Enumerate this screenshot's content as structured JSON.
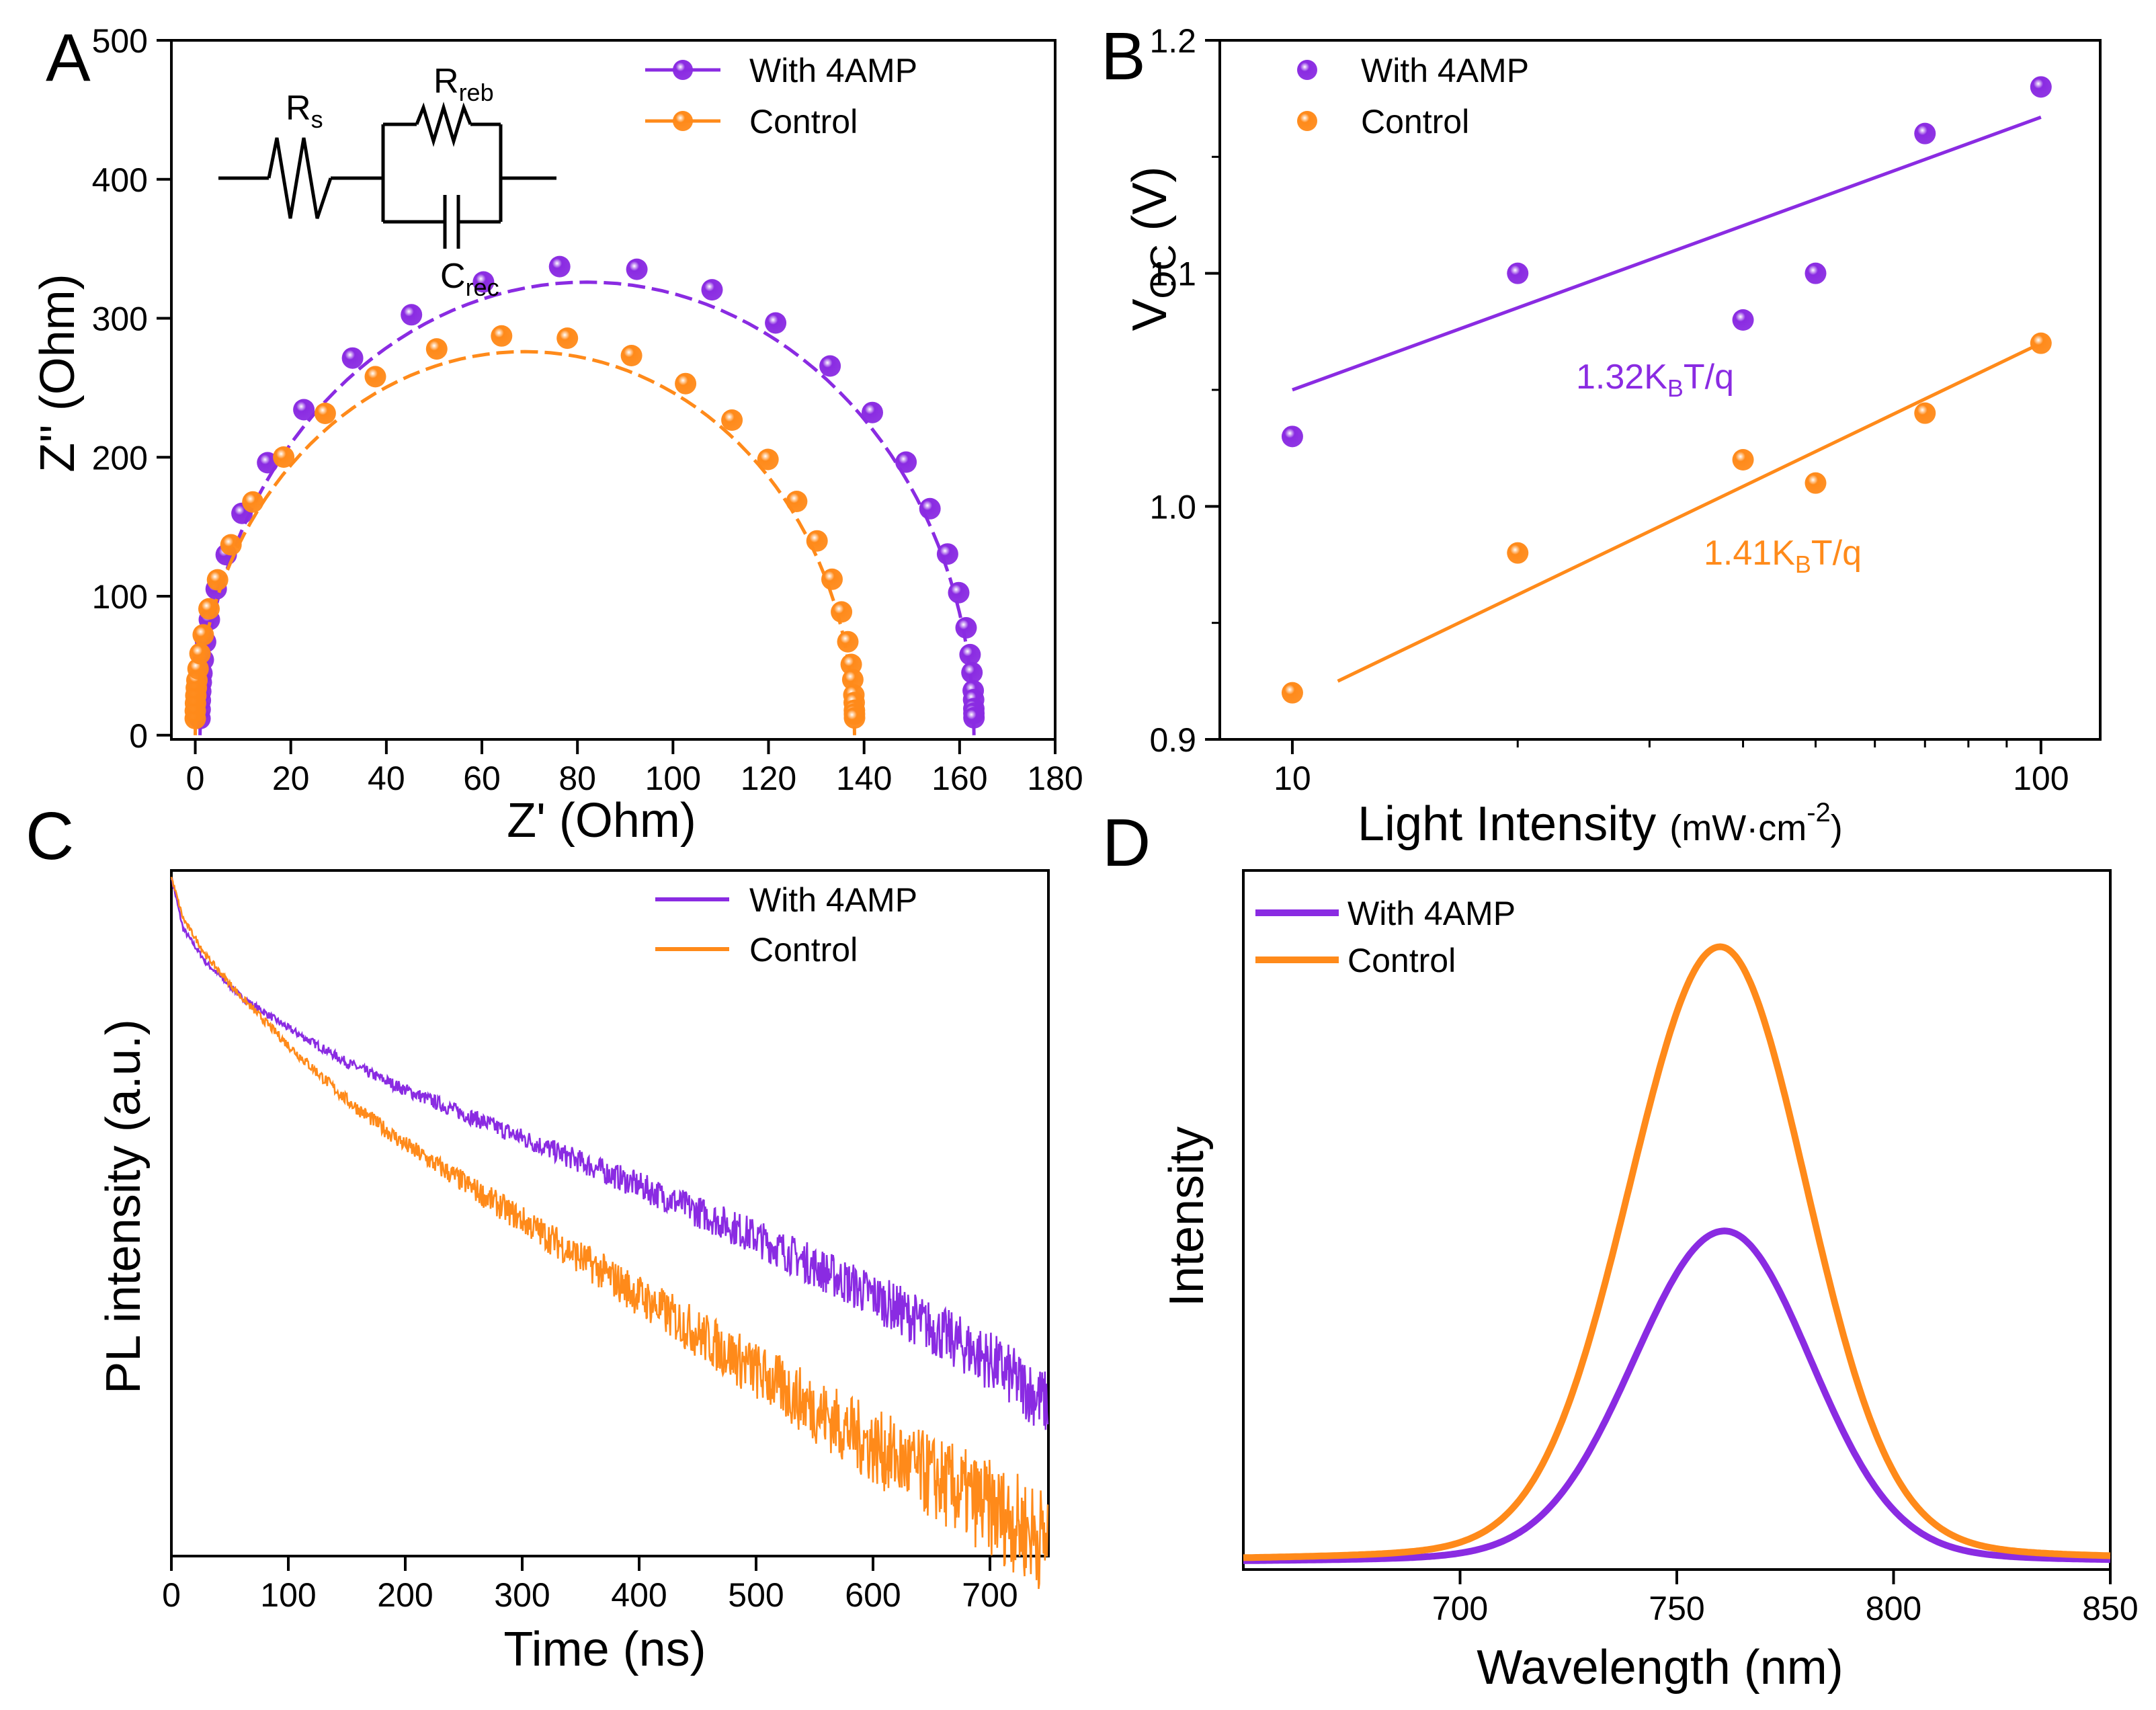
{
  "colors": {
    "purple": "#8A2BE2",
    "orange": "#FF8A1A",
    "axis": "#000000"
  },
  "chart_data": [
    {
      "id": "A",
      "panel_label": "A",
      "type": "scatter",
      "title": "",
      "xlabel": "Z' (Ohm)",
      "ylabel": "Z'' (Ohm)",
      "xlim": [
        -5,
        180
      ],
      "ylim": [
        -3,
        500
      ],
      "xticks": [
        0,
        20,
        40,
        60,
        80,
        100,
        120,
        140,
        160,
        180
      ],
      "yticks": [
        0,
        100,
        200,
        300,
        400,
        500
      ],
      "legend": {
        "position": "top-right",
        "entries": [
          "With 4AMP",
          "Control"
        ]
      },
      "circuit": {
        "r1_label": "R",
        "r1_sub": "s",
        "r2_label": "R",
        "r2_sub": "reb",
        "c_label": "C",
        "c_sub": "rec"
      },
      "series": [
        {
          "name": "With 4AMP",
          "color": "#8A2BE2",
          "center": 82,
          "radius": 81,
          "yscale": 326
        },
        {
          "name": "Control",
          "color": "#FF8A1A",
          "center": 69,
          "radius": 69,
          "yscale": 276
        }
      ]
    },
    {
      "id": "B",
      "panel_label": "B",
      "type": "scatter",
      "title": "",
      "xlabel": "Light Intensity (mW·cm⁻²)",
      "ylabel": "VOC (V)",
      "xscale": "log",
      "xlim": [
        8,
        120
      ],
      "ylim": [
        0.9,
        1.2
      ],
      "xticks": [
        10,
        100
      ],
      "yticks": [
        0.9,
        1.0,
        1.1,
        1.2
      ],
      "legend": {
        "position": "top-left",
        "entries": [
          "With 4AMP",
          "Control"
        ]
      },
      "annotations": [
        {
          "text": "1.32KBT/q",
          "main": "1.32K",
          "sub": "B",
          "tail": "T/q",
          "color": "#8A2BE2"
        },
        {
          "text": "1.41KBT/q",
          "main": "1.41K",
          "sub": "B",
          "tail": "T/q",
          "color": "#FF8A1A"
        }
      ],
      "series": [
        {
          "name": "With 4AMP",
          "color": "#8A2BE2",
          "x": [
            10,
            20,
            40,
            50,
            70,
            100
          ],
          "y": [
            1.03,
            1.1,
            1.08,
            1.1,
            1.16,
            1.18
          ],
          "fit": {
            "x": [
              10,
              100
            ],
            "y": [
              1.05,
              1.167
            ]
          }
        },
        {
          "name": "Control",
          "color": "#FF8A1A",
          "x": [
            10,
            20,
            40,
            50,
            70,
            100
          ],
          "y": [
            0.92,
            0.98,
            1.02,
            1.01,
            1.04,
            1.07
          ],
          "fit": {
            "x": [
              11.5,
              100
            ],
            "y": [
              0.925,
              1.07
            ]
          }
        }
      ]
    },
    {
      "id": "C",
      "panel_label": "C",
      "type": "line",
      "title": "",
      "xlabel": "Time (ns)",
      "ylabel": "PL intensity (a.u.)",
      "xlim": [
        0,
        750
      ],
      "ylim": [
        0,
        1
      ],
      "xticks": [
        0,
        100,
        200,
        300,
        400,
        500,
        600,
        700
      ],
      "legend": {
        "position": "top-right",
        "entries": [
          "With 4AMP",
          "Control"
        ]
      },
      "series": [
        {
          "name": "With 4AMP",
          "color": "#8A2BE2",
          "t": [
            0,
            10,
            30,
            60,
            100,
            150,
            200,
            300,
            400,
            500,
            600,
            700,
            750
          ],
          "v": [
            0.99,
            0.915,
            0.865,
            0.815,
            0.77,
            0.72,
            0.68,
            0.61,
            0.54,
            0.465,
            0.38,
            0.285,
            0.22
          ]
        },
        {
          "name": "Control",
          "color": "#FF8A1A",
          "t": [
            0,
            10,
            30,
            60,
            100,
            150,
            200,
            300,
            400,
            500,
            600,
            700,
            750
          ],
          "v": [
            0.99,
            0.93,
            0.875,
            0.815,
            0.745,
            0.665,
            0.6,
            0.49,
            0.38,
            0.27,
            0.16,
            0.07,
            0.02
          ]
        }
      ]
    },
    {
      "id": "D",
      "panel_label": "D",
      "type": "line",
      "title": "",
      "xlabel": "Wavelength (nm)",
      "ylabel": "Intensity",
      "xlim": [
        650,
        850
      ],
      "ylim": [
        0,
        1
      ],
      "xticks": [
        700,
        750,
        800,
        850
      ],
      "legend": {
        "position": "top-left",
        "entries": [
          "With 4AMP",
          "Control"
        ]
      },
      "series": [
        {
          "name": "With 4AMP",
          "color": "#8A2BE2",
          "peak": 761,
          "amplitude": 0.51,
          "baseline": 0.01
        },
        {
          "name": "Control",
          "color": "#FF8A1A",
          "peak": 760,
          "amplitude": 0.945,
          "baseline": 0.012
        }
      ]
    }
  ]
}
